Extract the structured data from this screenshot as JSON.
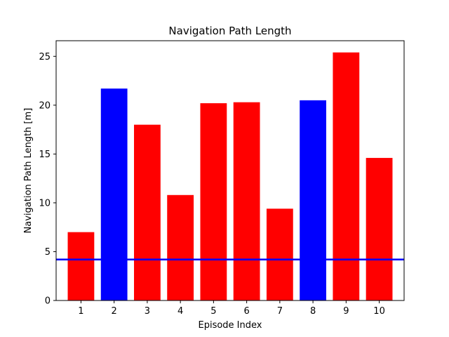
{
  "chart_data": {
    "type": "bar",
    "title": "Navigation Path Length",
    "xlabel": "Episode Index",
    "ylabel": "Navigation Path Length [m]",
    "categories": [
      "1",
      "2",
      "3",
      "4",
      "5",
      "6",
      "7",
      "8",
      "9",
      "10"
    ],
    "values": [
      7.0,
      21.7,
      18.0,
      10.8,
      20.2,
      20.3,
      9.4,
      20.5,
      25.4,
      14.6
    ],
    "bar_colors": [
      "#ff0000",
      "#0000ff",
      "#ff0000",
      "#ff0000",
      "#ff0000",
      "#ff0000",
      "#ff0000",
      "#0000ff",
      "#ff0000",
      "#ff0000"
    ],
    "reference_line": {
      "y": 4.2,
      "color": "#0000ff"
    },
    "xlim": [
      0.25,
      10.75
    ],
    "ylim": [
      0,
      26.6
    ],
    "yticks": [
      0,
      5,
      10,
      15,
      20,
      25
    ],
    "grid": false
  }
}
